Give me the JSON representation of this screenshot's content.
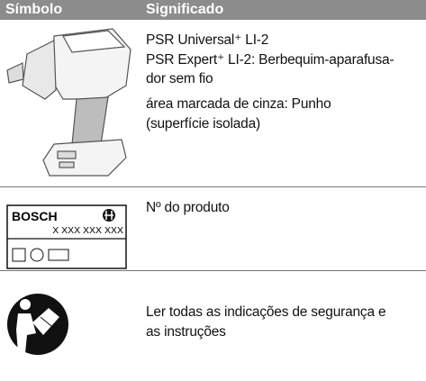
{
  "header": {
    "symbol": "Símbolo",
    "meaning": "Significado"
  },
  "rows": [
    {
      "lines": [
        "PSR Universal⁺ LI-2",
        "PSR Expert⁺ LI-2: Berbequim-aparafusa-",
        "dor sem fio",
        "área marcada de cinza: Punho",
        "(superfície isolada)"
      ]
    },
    {
      "label_brand": "BOSCH",
      "label_number": "X XXX XXX XXX",
      "lines": [
        "Nº do produto"
      ]
    },
    {
      "lines": [
        "Ler todas as indicações de segurança e",
        "as instruções"
      ]
    }
  ]
}
